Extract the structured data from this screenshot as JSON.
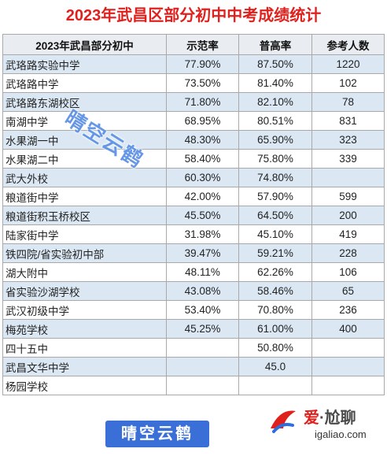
{
  "title": "2023年武昌区部分初中中考成绩统计",
  "table": {
    "headers": [
      "2023年武昌部分初中",
      "示范率",
      "普高率",
      "参考人数"
    ],
    "rows": [
      [
        "武珞路实验中学",
        "77.90%",
        "87.50%",
        "1220"
      ],
      [
        "武珞路中学",
        "73.50%",
        "81.40%",
        "102"
      ],
      [
        "武珞路东湖校区",
        "71.80%",
        "82.10%",
        "78"
      ],
      [
        "南湖中学",
        "68.95%",
        "80.51%",
        "831"
      ],
      [
        "水果湖一中",
        "48.30%",
        "65.90%",
        "323"
      ],
      [
        "水果湖二中",
        "58.40%",
        "75.80%",
        "339"
      ],
      [
        "武大外校",
        "60.30%",
        "74.80%",
        ""
      ],
      [
        "粮道街中学",
        "42.00%",
        "57.90%",
        "599"
      ],
      [
        "粮道街积玉桥校区",
        "45.50%",
        "64.50%",
        "200"
      ],
      [
        "陆家街中学",
        "31.98%",
        "45.10%",
        "419"
      ],
      [
        "铁四院/省实验初中部",
        "39.47%",
        "59.21%",
        "228"
      ],
      [
        "湖大附中",
        "48.11%",
        "62.26%",
        "106"
      ],
      [
        "省实验沙湖学校",
        "43.08%",
        "58.46%",
        "65"
      ],
      [
        "武汉初级中学",
        "53.40%",
        "70.80%",
        "236"
      ],
      [
        "梅苑学校",
        "45.25%",
        "61.00%",
        "400"
      ],
      [
        "四十五中",
        "",
        "50.80%",
        ""
      ],
      [
        "武昌文华中学",
        "",
        "45.0",
        ""
      ],
      [
        "杨园学校",
        "",
        "",
        ""
      ]
    ]
  },
  "watermarks": {
    "diagonal": "晴空云鹤",
    "box": "晴空云鹤",
    "logo_name_part1": "爱",
    "logo_name_sep": "·",
    "logo_name_part2": "尬聊",
    "logo_site": "igaliao.com"
  }
}
